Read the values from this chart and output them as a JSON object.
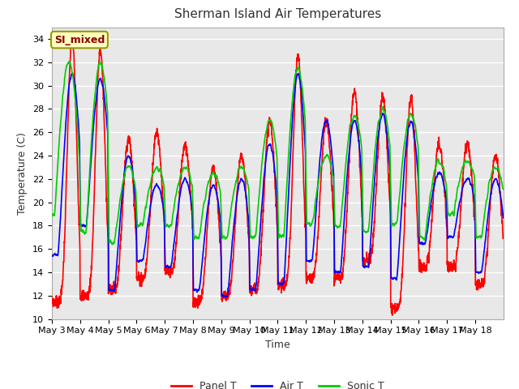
{
  "title": "Sherman Island Air Temperatures",
  "xlabel": "Time",
  "ylabel": "Temperature (C)",
  "ylim": [
    10,
    35
  ],
  "yticks": [
    10,
    12,
    14,
    16,
    18,
    20,
    22,
    24,
    26,
    28,
    30,
    32,
    34
  ],
  "xtick_labels": [
    "May 3",
    "May 4",
    "May 5",
    "May 6",
    "May 7",
    "May 8",
    "May 9",
    "May 10",
    "May 11",
    "May 12",
    "May 13",
    "May 14",
    "May 15",
    "May 16",
    "May 17",
    "May 18"
  ],
  "annotation_text": "SI_mixed",
  "annotation_color": "#8B0000",
  "annotation_bg": "#FFFFC0",
  "annotation_edge": "#999900",
  "background_color": "#E8E8E8",
  "panel_color": "#FF0000",
  "air_color": "#0000FF",
  "sonic_color": "#00CC00",
  "legend_labels": [
    "Panel T",
    "Air T",
    "Sonic T"
  ],
  "num_days": 16,
  "points_per_day": 144,
  "title_fontsize": 11,
  "tick_fontsize": 8,
  "label_fontsize": 9,
  "legend_fontsize": 9
}
